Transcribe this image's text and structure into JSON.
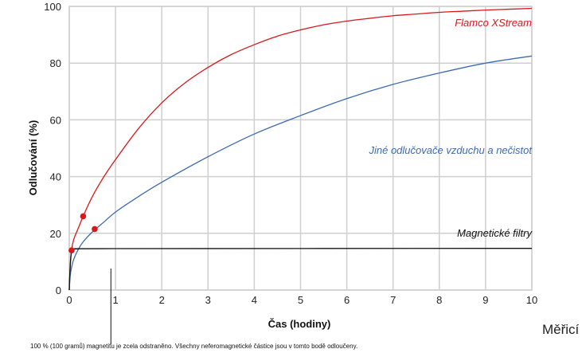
{
  "chart_data": {
    "type": "line",
    "xlabel": "Čas (hodiny)",
    "ylabel": "Odlučování (%)",
    "xlim": [
      0,
      10
    ],
    "ylim": [
      0,
      100
    ],
    "x_ticks": [
      0,
      1,
      2,
      3,
      4,
      5,
      6,
      7,
      8,
      9,
      10
    ],
    "y_ticks": [
      0,
      20,
      40,
      60,
      80,
      100
    ],
    "grid": true,
    "series": [
      {
        "name": "Flamco XStream",
        "color": "#d7191c",
        "x": [
          0,
          0.02,
          0.05,
          0.1,
          0.2,
          0.3,
          0.5,
          0.75,
          1,
          1.5,
          2,
          2.5,
          3,
          3.5,
          4,
          4.5,
          5,
          5.5,
          6,
          6.5,
          7,
          7.5,
          8,
          8.5,
          9,
          9.5,
          10
        ],
        "values": [
          0,
          8,
          14,
          18,
          22,
          26,
          33,
          40,
          46,
          57,
          66,
          73,
          78.5,
          83,
          86.5,
          89.5,
          91.7,
          93.5,
          94.8,
          95.8,
          96.7,
          97.3,
          97.9,
          98.3,
          98.7,
          99,
          99.3
        ],
        "markers": [
          {
            "x": 0.05,
            "y": 14
          },
          {
            "x": 0.3,
            "y": 26
          },
          {
            "x": 0.55,
            "y": 21.5
          }
        ]
      },
      {
        "name": "Jiné odlučovače vzduchu a nečistot",
        "color": "#3c6ab0",
        "x": [
          0,
          0.02,
          0.05,
          0.1,
          0.2,
          0.3,
          0.5,
          0.75,
          1,
          1.5,
          2,
          3,
          4,
          5,
          6,
          7,
          8,
          9,
          10
        ],
        "values": [
          0,
          5,
          8,
          11,
          14.5,
          17,
          20.5,
          24,
          27.5,
          33,
          38,
          47,
          55,
          61.5,
          67.5,
          72.5,
          76.5,
          80,
          82.5
        ]
      },
      {
        "name": "Magnetické filtry",
        "color": "#111111",
        "x": [
          0,
          0.01,
          0.03,
          0.05,
          0.1,
          0.2,
          1,
          10
        ],
        "values": [
          0,
          5,
          11,
          13.5,
          14.3,
          14.5,
          14.6,
          14.7
        ]
      }
    ],
    "annotation_line_x": 0.9
  },
  "annotation": "100 % (100 gramů) magnetitu je zcela odstraněno. Všechny neferomagnetické částice jsou v tomto bodě odloučeny.",
  "corner_text": "Měřicí"
}
